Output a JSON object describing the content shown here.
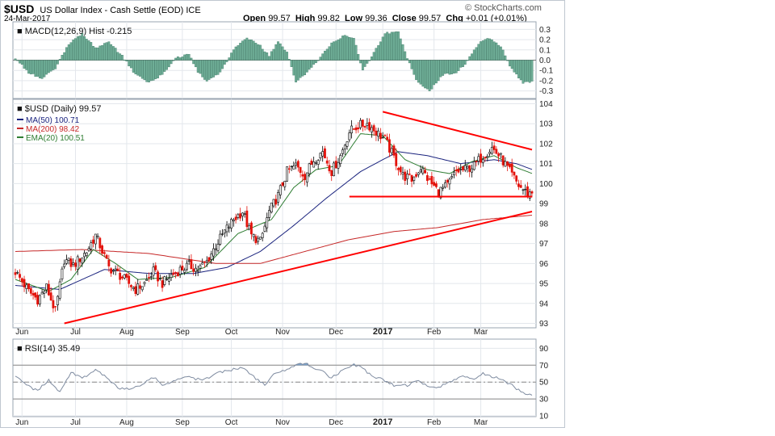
{
  "header": {
    "symbol": "$USD",
    "description": "US Dollar Index - Cash Settle (EOD)",
    "exchange": "ICE",
    "date": "24-Mar-2017",
    "provider": "© StockCharts.com",
    "open_label": "Open",
    "open": "99.57",
    "high_label": "High",
    "high": "99.82",
    "low_label": "Low",
    "low": "99.36",
    "close_label": "Close",
    "close": "99.57",
    "chg_label": "Chg",
    "chg": "+0.01 (+0.01%)"
  },
  "colors": {
    "up": "#000000",
    "down": "#e3120b",
    "ma50": "#1a237e",
    "ma200": "#c62828",
    "ema20": "#2e7d32",
    "macd_hist": "#6fae97",
    "trendline": "#ff0000",
    "rsi": "#7e8ba0"
  },
  "chart_data": [
    {
      "type": "bar",
      "panel": "MACD",
      "legend": "MACD(12,26,9) Hist -0.215",
      "ylim": [
        -0.35,
        0.35
      ],
      "yticks": [
        "0.3",
        "0.2",
        "0.1",
        "0.0",
        "-0.1",
        "-0.2",
        "-0.3"
      ],
      "ytick_values": [
        0.3,
        0.2,
        0.1,
        0.0,
        -0.1,
        -0.2,
        -0.3
      ],
      "anchors": [
        [
          0,
          0.02
        ],
        [
          6,
          -0.12
        ],
        [
          12,
          -0.18
        ],
        [
          18,
          -0.08
        ],
        [
          24,
          0.16
        ],
        [
          30,
          0.26
        ],
        [
          36,
          0.12
        ],
        [
          42,
          0.18
        ],
        [
          48,
          0.04
        ],
        [
          54,
          -0.14
        ],
        [
          60,
          -0.22
        ],
        [
          66,
          -0.14
        ],
        [
          72,
          0.02
        ],
        [
          78,
          0.06
        ],
        [
          82,
          -0.12
        ],
        [
          86,
          -0.2
        ],
        [
          92,
          -0.12
        ],
        [
          98,
          0.1
        ],
        [
          104,
          0.22
        ],
        [
          110,
          0.14
        ],
        [
          114,
          0.04
        ],
        [
          118,
          0.18
        ],
        [
          122,
          0.08
        ],
        [
          126,
          -0.22
        ],
        [
          132,
          -0.1
        ],
        [
          138,
          0.06
        ],
        [
          142,
          0.16
        ],
        [
          148,
          0.24
        ],
        [
          152,
          0.22
        ],
        [
          156,
          -0.1
        ],
        [
          160,
          0.04
        ],
        [
          166,
          0.26
        ],
        [
          172,
          0.28
        ],
        [
          176,
          0.02
        ],
        [
          180,
          -0.2
        ],
        [
          186,
          -0.3
        ],
        [
          192,
          -0.14
        ],
        [
          198,
          -0.12
        ],
        [
          202,
          -0.04
        ],
        [
          208,
          0.16
        ],
        [
          212,
          0.22
        ],
        [
          218,
          0.14
        ],
        [
          222,
          -0.06
        ],
        [
          228,
          -0.22
        ],
        [
          232,
          -0.215
        ]
      ]
    },
    {
      "type": "candlestick",
      "panel": "Price",
      "legend_title": "$USD (Daily) 99.57",
      "ylim": [
        92.9,
        104.1
      ],
      "yticks": [
        "104",
        "103",
        "102",
        "101",
        "100",
        "99",
        "98",
        "97",
        "96",
        "95",
        "94",
        "93"
      ],
      "ytick_values": [
        104,
        103,
        102,
        101,
        100,
        99,
        98,
        97,
        96,
        95,
        94,
        93
      ],
      "x_labels": [
        "Jun",
        "Jul",
        "Aug",
        "Sep",
        "Oct",
        "Nov",
        "Dec",
        "2017",
        "Feb",
        "Mar"
      ],
      "x_label_index": [
        3,
        27,
        50,
        75,
        97,
        120,
        144,
        165,
        188,
        209
      ],
      "close_anchors": [
        [
          0,
          95.6
        ],
        [
          6,
          94.6
        ],
        [
          10,
          94.2
        ],
        [
          14,
          94.8
        ],
        [
          18,
          93.6
        ],
        [
          22,
          96.2
        ],
        [
          26,
          95.9
        ],
        [
          32,
          96.6
        ],
        [
          36,
          97.4
        ],
        [
          38,
          96.9
        ],
        [
          42,
          95.8
        ],
        [
          46,
          95.5
        ],
        [
          50,
          95.1
        ],
        [
          54,
          94.7
        ],
        [
          58,
          95.0
        ],
        [
          62,
          95.6
        ],
        [
          66,
          95.0
        ],
        [
          70,
          95.4
        ],
        [
          74,
          95.7
        ],
        [
          78,
          95.9
        ],
        [
          82,
          95.7
        ],
        [
          86,
          96.1
        ],
        [
          90,
          96.9
        ],
        [
          94,
          97.6
        ],
        [
          98,
          98.2
        ],
        [
          102,
          98.6
        ],
        [
          106,
          97.4
        ],
        [
          110,
          97.1
        ],
        [
          114,
          98.6
        ],
        [
          118,
          99.4
        ],
        [
          122,
          100.6
        ],
        [
          126,
          100.9
        ],
        [
          130,
          100.4
        ],
        [
          134,
          101.2
        ],
        [
          138,
          101.6
        ],
        [
          142,
          100.6
        ],
        [
          146,
          101.4
        ],
        [
          150,
          102.6
        ],
        [
          154,
          102.9
        ],
        [
          158,
          103.0
        ],
        [
          162,
          102.6
        ],
        [
          166,
          102.2
        ],
        [
          170,
          101.3
        ],
        [
          174,
          100.4
        ],
        [
          178,
          100.2
        ],
        [
          182,
          100.8
        ],
        [
          186,
          100.1
        ],
        [
          190,
          99.6
        ],
        [
          194,
          99.9
        ],
        [
          198,
          100.6
        ],
        [
          202,
          100.7
        ],
        [
          206,
          100.9
        ],
        [
          210,
          101.4
        ],
        [
          214,
          101.8
        ],
        [
          218,
          101.3
        ],
        [
          222,
          100.6
        ],
        [
          226,
          99.9
        ],
        [
          230,
          99.5
        ],
        [
          232,
          99.57
        ]
      ],
      "series": [
        {
          "name": "MA(50) 100.71",
          "anchors": [
            [
              0,
              94.9
            ],
            [
              20,
              94.7
            ],
            [
              40,
              95.7
            ],
            [
              60,
              95.5
            ],
            [
              80,
              95.5
            ],
            [
              95,
              95.8
            ],
            [
              110,
              96.6
            ],
            [
              125,
              97.9
            ],
            [
              140,
              99.3
            ],
            [
              155,
              100.6
            ],
            [
              165,
              101.2
            ],
            [
              172,
              101.6
            ],
            [
              185,
              101.4
            ],
            [
              200,
              101.0
            ],
            [
              215,
              101.2
            ],
            [
              225,
              101.0
            ],
            [
              232,
              100.71
            ]
          ]
        },
        {
          "name": "MA(200) 98.42",
          "anchors": [
            [
              0,
              96.6
            ],
            [
              30,
              96.7
            ],
            [
              60,
              96.5
            ],
            [
              90,
              96.0
            ],
            [
              110,
              96.0
            ],
            [
              130,
              96.6
            ],
            [
              150,
              97.2
            ],
            [
              170,
              97.6
            ],
            [
              190,
              97.8
            ],
            [
              210,
              98.2
            ],
            [
              232,
              98.42
            ]
          ]
        },
        {
          "name": "EMA(20) 100.51",
          "anchors": [
            [
              0,
              95.2
            ],
            [
              15,
              94.6
            ],
            [
              25,
              95.2
            ],
            [
              35,
              96.7
            ],
            [
              45,
              96.0
            ],
            [
              55,
              95.2
            ],
            [
              70,
              95.3
            ],
            [
              85,
              95.8
            ],
            [
              100,
              97.5
            ],
            [
              115,
              98.2
            ],
            [
              125,
              99.8
            ],
            [
              135,
              100.7
            ],
            [
              145,
              100.9
            ],
            [
              155,
              102.5
            ],
            [
              165,
              102.4
            ],
            [
              175,
              101.2
            ],
            [
              185,
              100.7
            ],
            [
              195,
              100.5
            ],
            [
              205,
              101.1
            ],
            [
              215,
              101.4
            ],
            [
              225,
              100.8
            ],
            [
              232,
              100.51
            ]
          ]
        }
      ],
      "trendlines": [
        [
          [
            22,
            93.0
          ],
          [
            232,
            98.6
          ]
        ],
        [
          [
            165,
            103.6
          ],
          [
            232,
            101.7
          ]
        ],
        [
          [
            150,
            99.35
          ],
          [
            232,
            99.35
          ]
        ]
      ]
    },
    {
      "type": "line",
      "panel": "RSI",
      "legend": "RSI(14) 35.49",
      "ylim": [
        12,
        98
      ],
      "yticks": [
        "90",
        "70",
        "50",
        "30",
        "10"
      ],
      "ytick_values": [
        90,
        70,
        50,
        30,
        10
      ],
      "guides": [
        70,
        30
      ],
      "x_labels": [
        "Jun",
        "Jul",
        "Aug",
        "Sep",
        "Oct",
        "Nov",
        "Dec",
        "2017",
        "Feb",
        "Mar"
      ],
      "anchors": [
        [
          0,
          58
        ],
        [
          5,
          46
        ],
        [
          10,
          40
        ],
        [
          15,
          52
        ],
        [
          20,
          38
        ],
        [
          25,
          62
        ],
        [
          30,
          55
        ],
        [
          36,
          64
        ],
        [
          40,
          57
        ],
        [
          46,
          43
        ],
        [
          52,
          41
        ],
        [
          58,
          49
        ],
        [
          62,
          56
        ],
        [
          66,
          46
        ],
        [
          72,
          52
        ],
        [
          78,
          56
        ],
        [
          84,
          52
        ],
        [
          90,
          60
        ],
        [
          96,
          64
        ],
        [
          102,
          67
        ],
        [
          108,
          54
        ],
        [
          112,
          47
        ],
        [
          116,
          60
        ],
        [
          120,
          63
        ],
        [
          126,
          70
        ],
        [
          130,
          73
        ],
        [
          134,
          65
        ],
        [
          138,
          62
        ],
        [
          142,
          55
        ],
        [
          148,
          66
        ],
        [
          152,
          71
        ],
        [
          156,
          66
        ],
        [
          160,
          57
        ],
        [
          164,
          54
        ],
        [
          170,
          46
        ],
        [
          176,
          46
        ],
        [
          180,
          52
        ],
        [
          186,
          44
        ],
        [
          190,
          44
        ],
        [
          196,
          52
        ],
        [
          200,
          57
        ],
        [
          206,
          53
        ],
        [
          210,
          60
        ],
        [
          216,
          55
        ],
        [
          222,
          48
        ],
        [
          228,
          37
        ],
        [
          232,
          35.49
        ]
      ]
    }
  ]
}
